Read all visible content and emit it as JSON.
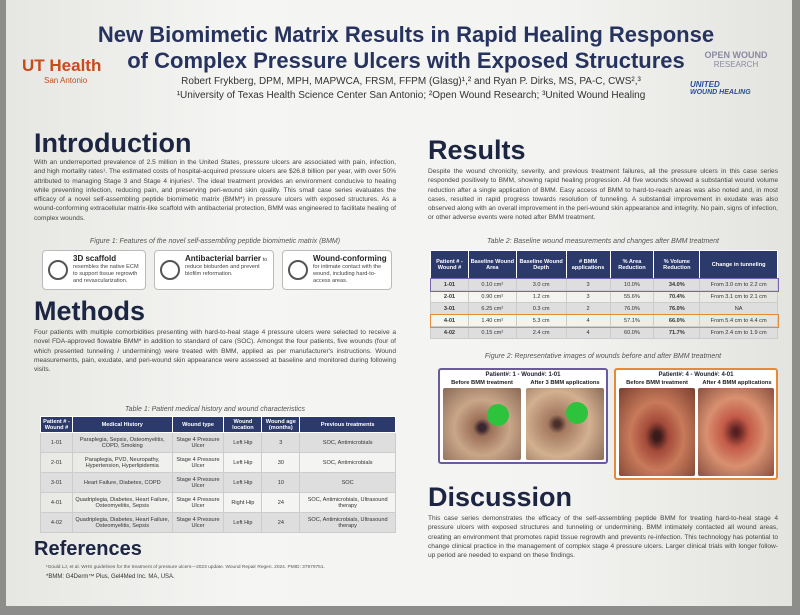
{
  "header": {
    "title_line1": "New Biomimetic Matrix Results in Rapid Healing Response",
    "title_line2": "of Complex Pressure Ulcers with Exposed Structures",
    "authors": "Robert Frykberg, DPM, MPH, MAPWCA, FRSM, FFPM (Glasg)¹,² and Ryan P. Dirks, MS, PA-C, CWS²,³",
    "affiliations": "¹University of Texas Health Science Center San Antonio; ²Open Wound Research; ³United Wound Healing",
    "logo_left": "UT Health",
    "logo_left_sub": "San Antonio",
    "logo_right1": "OPEN WOUND",
    "logo_right1_sub": "RESEARCH",
    "logo_right2": "UNITED",
    "logo_right2_sub": "WOUND HEALING"
  },
  "introduction": {
    "heading": "Introduction",
    "text": "With an underreported prevalence of 2.5 million in the United States, pressure ulcers are associated with pain, infection, and high mortality rates¹. The estimated costs of hospital-acquired pressure ulcers are $26.8 billion per year, with over 50% attributed to managing Stage 3 and Stage 4 injuries¹. The ideal treatment provides an environment conducive to healing while preventing infection, reducing pain, and preserving peri-wound skin quality. This small case series evaluates the efficacy of a novel self-assembling peptide biomimetic matrix (BMM*) in pressure ulcers with exposed structures. As a wound-conforming extracellular matrix-like scaffold with antibacterial protection, BMM was engineered to facilitate healing of complex wounds.",
    "figure_caption": "Figure 1: Features of the novel self-assembling peptide biomimetic matrix (BMM)",
    "features": [
      {
        "title": "3D scaffold",
        "text": "resembles the native ECM to support tissue regrowth and revascularization."
      },
      {
        "title": "Antibacterial barrier",
        "text": "to reduce bioburden and prevent biofilm reformation."
      },
      {
        "title": "Wound-conforming",
        "text": "for intimate contact with the wound, including hard-to-access areas."
      }
    ]
  },
  "methods": {
    "heading": "Methods",
    "text": "Four patients with multiple comorbidities presenting with hard-to-heal stage 4 pressure ulcers were selected to receive a novel FDA-approved flowable BMM* in addition to standard of care (SOC). Amongst the four patients, five wounds (four of which presented tunneling / undermining) were treated with BMM, applied as per manufacturer's instructions. Wound measurements, pain, exudate, and peri-wound skin appearance were assessed at baseline and monitored during following visits.",
    "table_caption": "Table 1: Patient medical history and wound characteristics",
    "table": {
      "header": [
        "Patient # - Wound #",
        "Medical History",
        "Wound type",
        "Wound location",
        "Wound age (months)",
        "Previous treatments"
      ],
      "rows": [
        [
          "1-01",
          "Paraplegia, Sepsis, Osteomyelitis, COPD, Smoking",
          "Stage 4 Pressure Ulcer",
          "Left Hip",
          "3",
          "SOC, Antimicrobials"
        ],
        [
          "2-01",
          "Paraplegia, PVD, Neuropathy, Hypertension, Hyperlipidemia",
          "Stage 4 Pressure Ulcer",
          "Left Hip",
          "30",
          "SOC, Antimicrobials"
        ],
        [
          "3-01",
          "Heart Failure, Diabetes, COPD",
          "Stage 4 Pressure Ulcer",
          "Left Hip",
          "10",
          "SOC"
        ],
        [
          "4-01",
          "Quadriplegia, Diabetes, Heart Failure, Osteomyelitis, Sepsis",
          "Stage 4 Pressure Ulcer",
          "Right Hip",
          "24",
          "SOC, Antimicrobials, Ultrasound therapy"
        ],
        [
          "4-02",
          "Quadriplegia, Diabetes, Heart Failure, Osteomyelitis, Sepsis",
          "Stage 4 Pressure Ulcer",
          "Left Hip",
          "24",
          "SOC, Antimicrobials, Ultrasound therapy"
        ]
      ]
    }
  },
  "references": {
    "heading": "References",
    "items": [
      "¹Gould LJ, et al. WHS guidelines for the treatment of pressure ulcers—2023 update. Wound Repair Regen. 2024. PMID: 37979751.",
      "*BMM: G4Derm™ Plus, Gel4Med Inc. MA, USA."
    ]
  },
  "results": {
    "heading": "Results",
    "text": "Despite the wound chronicity, severity, and previous treatment failures, all the pressure ulcers in this case series responded positively to BMM, showing rapid healing progression. All five wounds showed a substantial wound volume reduction after a single application of BMM. Easy access of BMM to hard-to-reach areas was also noted and, in most cases, resulted in rapid progress towards resolution of tunneling. A substantial improvement in exudate was also observed along with an overall improvement in the peri-wound skin appearance and integrity. No pain, signs of infection, or other adverse events were noted after BMM treatment.",
    "table_caption": "Table 2: Baseline wound measurements and changes after BMM treatment",
    "table": {
      "header": [
        "Patient # - Wound #",
        "Baseline Wound Area",
        "Baseline Wound Depth",
        "# BMM applications",
        "% Area Reduction",
        "% Volume Reduction",
        "Change in tunneling"
      ],
      "rows": [
        [
          "1-01",
          "0.10 cm²",
          "3.0 cm",
          "3",
          "10.0%",
          "34.0%",
          "From 3.0 cm to 2.2 cm"
        ],
        [
          "2-01",
          "0.90 cm²",
          "1.2 cm",
          "3",
          "55.6%",
          "70.4%",
          "From 3.1 cm to 2.1 cm"
        ],
        [
          "3-01",
          "6.25 cm²",
          "0.3 cm",
          "2",
          "76.0%",
          "76.0%",
          "NA"
        ],
        [
          "4-01",
          "1.40 cm²",
          "5.3 cm",
          "4",
          "57.1%",
          "66.0%",
          "From 5.4 cm to 4.4 cm"
        ],
        [
          "4-02",
          "0.15 cm²",
          "2.4 cm",
          "4",
          "60.0%",
          "71.7%",
          "From 2.4 cm to 1.9 cm"
        ]
      ]
    },
    "figure_caption": "Figure 2: Representative images of wounds before and after BMM treatment",
    "panels": [
      {
        "title": "Patient#: 1 - Wound#: 1-01",
        "before": "Before BMM treatment",
        "after": "After 3 BMM applications"
      },
      {
        "title": "Patient#: 4 - Wound#: 4-01",
        "before": "Before BMM treatment",
        "after": "After 4 BMM applications"
      }
    ]
  },
  "discussion": {
    "heading": "Discussion",
    "text": "This case series demonstrates the efficacy of the self-assembling peptide BMM for treating hard-to-heal stage 4 pressure ulcers with exposed structures and tunneling or undermining. BMM intimately contacted all wound areas, creating an environment that promotes rapid tissue regrowth and prevents re-infection. This technology has potential to change clinical practice in the management of complex stage 4 pressure ulcers. Larger clinical trials with longer follow-up period are needed to expand on these findings."
  }
}
